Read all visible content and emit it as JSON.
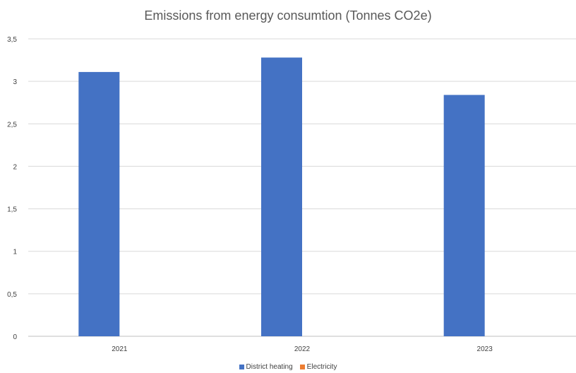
{
  "chart_data": {
    "type": "bar",
    "title": "Emissions from energy consumtion (Tonnes CO2e)",
    "xlabel": "",
    "ylabel": "",
    "categories": [
      "2021",
      "2022",
      "2023"
    ],
    "series": [
      {
        "name": "District heating",
        "color": "#4472c4",
        "values": [
          3.11,
          3.28,
          2.84
        ]
      },
      {
        "name": "Electricity",
        "color": "#ed7d31",
        "values": [
          0,
          0,
          0
        ]
      }
    ],
    "ylim": [
      0,
      3.5
    ],
    "yticks": [
      0,
      0.5,
      1,
      1.5,
      2,
      2.5,
      3,
      3.5
    ],
    "ytick_labels": [
      "0",
      "0,5",
      "1",
      "1,5",
      "2",
      "2,5",
      "3",
      "3,5"
    ],
    "grid": true,
    "legend": "bottom"
  }
}
